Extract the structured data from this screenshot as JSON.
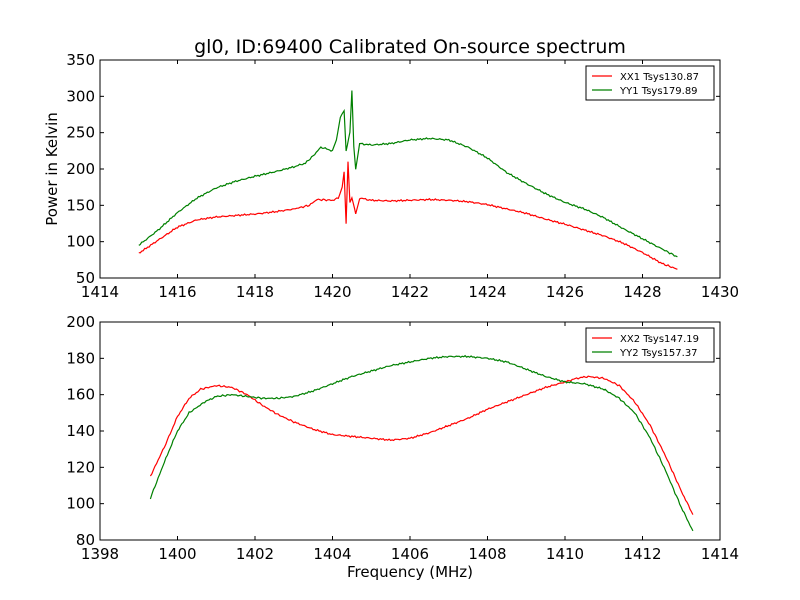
{
  "title": "gl0, ID:69400 Calibrated On-source spectrum",
  "chart_data": [
    {
      "type": "line",
      "ylabel": "Power in Kelvin",
      "xlim": [
        1414,
        1430
      ],
      "ylim": [
        50,
        350
      ],
      "xticks": [
        "1414",
        "1416",
        "1418",
        "1420",
        "1422",
        "1424",
        "1426",
        "1428",
        "1430"
      ],
      "yticks": [
        "50",
        "100",
        "150",
        "200",
        "250",
        "300",
        "350"
      ],
      "legend_position": "top-right",
      "series": [
        {
          "name": "XX1 Tsys130.87",
          "color": "#ff0000",
          "x": [
            1415.0,
            1415.5,
            1416.0,
            1416.5,
            1417.0,
            1417.5,
            1418.0,
            1418.5,
            1419.0,
            1419.4,
            1419.6,
            1420.0,
            1420.15,
            1420.25,
            1420.3,
            1420.35,
            1420.4,
            1420.45,
            1420.5,
            1420.6,
            1420.7,
            1421.0,
            1421.5,
            1422.0,
            1422.5,
            1423.0,
            1423.5,
            1424.0,
            1424.5,
            1425.0,
            1425.5,
            1426.0,
            1426.5,
            1427.0,
            1427.5,
            1428.0,
            1428.5,
            1428.9
          ],
          "y": [
            84,
            102,
            120,
            130,
            134,
            136,
            138,
            141,
            145,
            150,
            158,
            157,
            160,
            175,
            195,
            125,
            210,
            155,
            160,
            138,
            160,
            157,
            156,
            157,
            158,
            157,
            155,
            151,
            145,
            139,
            131,
            124,
            116,
            108,
            98,
            85,
            70,
            62
          ]
        },
        {
          "name": "YY1 Tsys179.89",
          "color": "#008000",
          "x": [
            1415.0,
            1415.5,
            1416.0,
            1416.5,
            1417.0,
            1417.5,
            1418.0,
            1418.5,
            1419.0,
            1419.3,
            1419.5,
            1419.7,
            1420.0,
            1420.1,
            1420.2,
            1420.3,
            1420.35,
            1420.45,
            1420.5,
            1420.55,
            1420.6,
            1420.7,
            1421.0,
            1421.5,
            1422.0,
            1422.5,
            1423.0,
            1423.5,
            1424.0,
            1424.5,
            1425.0,
            1425.5,
            1426.0,
            1426.5,
            1427.0,
            1427.5,
            1428.0,
            1428.5,
            1428.9
          ],
          "y": [
            95,
            116,
            140,
            160,
            174,
            183,
            190,
            196,
            203,
            208,
            218,
            230,
            225,
            240,
            270,
            280,
            225,
            250,
            308,
            230,
            200,
            235,
            233,
            235,
            240,
            242,
            240,
            230,
            215,
            195,
            180,
            166,
            154,
            145,
            133,
            118,
            104,
            90,
            79
          ]
        }
      ]
    },
    {
      "type": "line",
      "xlabel": "Frequency (MHz)",
      "xlim": [
        1398,
        1414
      ],
      "ylim": [
        80,
        200
      ],
      "xticks": [
        "1398",
        "1400",
        "1402",
        "1404",
        "1406",
        "1408",
        "1410",
        "1412",
        "1414"
      ],
      "yticks": [
        "80",
        "100",
        "120",
        "140",
        "160",
        "180",
        "200"
      ],
      "legend_position": "top-right",
      "series": [
        {
          "name": "XX2 Tsys147.19",
          "color": "#ff0000",
          "x": [
            1399.3,
            1399.7,
            1400.0,
            1400.3,
            1400.6,
            1401.0,
            1401.4,
            1401.8,
            1402.2,
            1402.6,
            1403.0,
            1403.5,
            1404.0,
            1404.5,
            1405.0,
            1405.5,
            1406.0,
            1406.5,
            1407.0,
            1407.5,
            1408.0,
            1408.5,
            1409.0,
            1409.5,
            1410.0,
            1410.3,
            1410.6,
            1411.0,
            1411.4,
            1411.8,
            1412.2,
            1412.6,
            1413.0,
            1413.3
          ],
          "y": [
            115,
            133,
            148,
            158,
            163,
            165,
            164,
            160,
            154,
            149,
            145,
            141,
            138,
            137,
            136,
            135,
            136,
            139,
            143,
            147,
            152,
            156,
            160,
            164,
            167,
            169,
            170,
            169,
            165,
            156,
            143,
            126,
            107,
            94
          ]
        },
        {
          "name": "YY2 Tsys157.37",
          "color": "#008000",
          "x": [
            1399.3,
            1399.7,
            1400.0,
            1400.3,
            1400.7,
            1401.0,
            1401.4,
            1401.8,
            1402.2,
            1402.6,
            1403.0,
            1403.5,
            1404.0,
            1404.5,
            1405.0,
            1405.5,
            1406.0,
            1406.5,
            1407.0,
            1407.5,
            1408.0,
            1408.5,
            1409.0,
            1409.5,
            1410.0,
            1410.5,
            1411.0,
            1411.4,
            1411.8,
            1412.2,
            1412.6,
            1413.0,
            1413.3
          ],
          "y": [
            103,
            125,
            140,
            150,
            156,
            159,
            160,
            159,
            158,
            158,
            159,
            162,
            166,
            170,
            173,
            176,
            178,
            180,
            181,
            181,
            180,
            178,
            174,
            170,
            167,
            166,
            163,
            158,
            150,
            136,
            118,
            98,
            85
          ]
        }
      ]
    }
  ]
}
